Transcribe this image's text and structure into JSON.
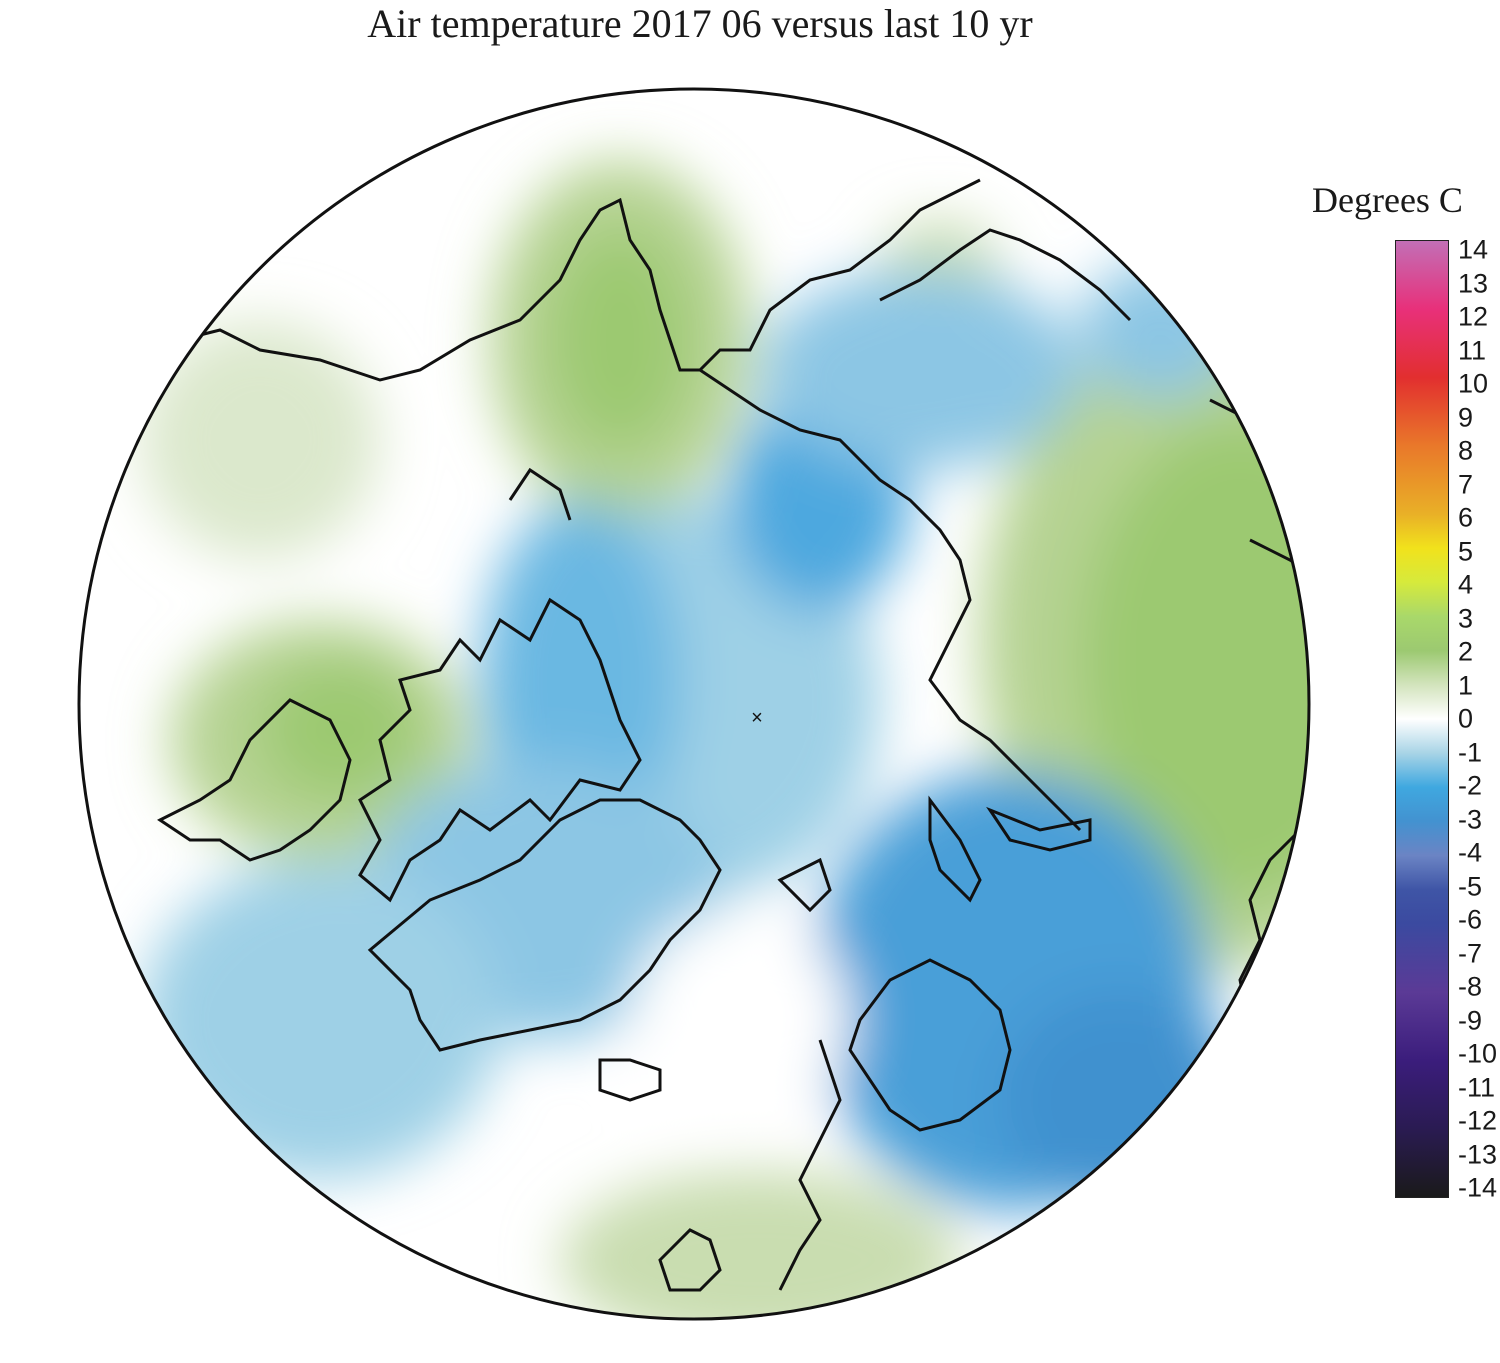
{
  "title": "Air temperature 2017 06 versus last 10 yr",
  "legend": {
    "title": "Degrees C",
    "min": -14,
    "max": 14,
    "ticks": [
      "14",
      "13",
      "12",
      "11",
      "10",
      "9",
      "8",
      "7",
      "6",
      "5",
      "4",
      "3",
      "2",
      "1",
      "0",
      "-1",
      "-2",
      "-3",
      "-4",
      "-5",
      "-6",
      "-7",
      "-8",
      "-9",
      "-10",
      "-11",
      "-12",
      "-13",
      "-14"
    ],
    "color_stops": [
      {
        "value": 14,
        "color": "#c26fb6"
      },
      {
        "value": 12,
        "color": "#e8307a"
      },
      {
        "value": 10,
        "color": "#e22f2f"
      },
      {
        "value": 8,
        "color": "#e9782a"
      },
      {
        "value": 6,
        "color": "#e9b027"
      },
      {
        "value": 5,
        "color": "#f1e21c"
      },
      {
        "value": 4,
        "color": "#d6ea3c"
      },
      {
        "value": 3,
        "color": "#a9d86a"
      },
      {
        "value": 2,
        "color": "#9cc971"
      },
      {
        "value": 1,
        "color": "#d3e4bd"
      },
      {
        "value": 0,
        "color": "#ffffff"
      },
      {
        "value": -1,
        "color": "#a8d4e6"
      },
      {
        "value": -2,
        "color": "#3fa8e0"
      },
      {
        "value": -3,
        "color": "#4392d0"
      },
      {
        "value": -4,
        "color": "#6b84c4"
      },
      {
        "value": -5,
        "color": "#3f55a6"
      },
      {
        "value": -6,
        "color": "#3b4aa0"
      },
      {
        "value": -8,
        "color": "#5b3a96"
      },
      {
        "value": -10,
        "color": "#3b1d7c"
      },
      {
        "value": -12,
        "color": "#2a1b52"
      },
      {
        "value": -14,
        "color": "#1a1a1a"
      }
    ]
  },
  "map": {
    "projection": "north polar stereographic",
    "pole_marker": "×"
  }
}
